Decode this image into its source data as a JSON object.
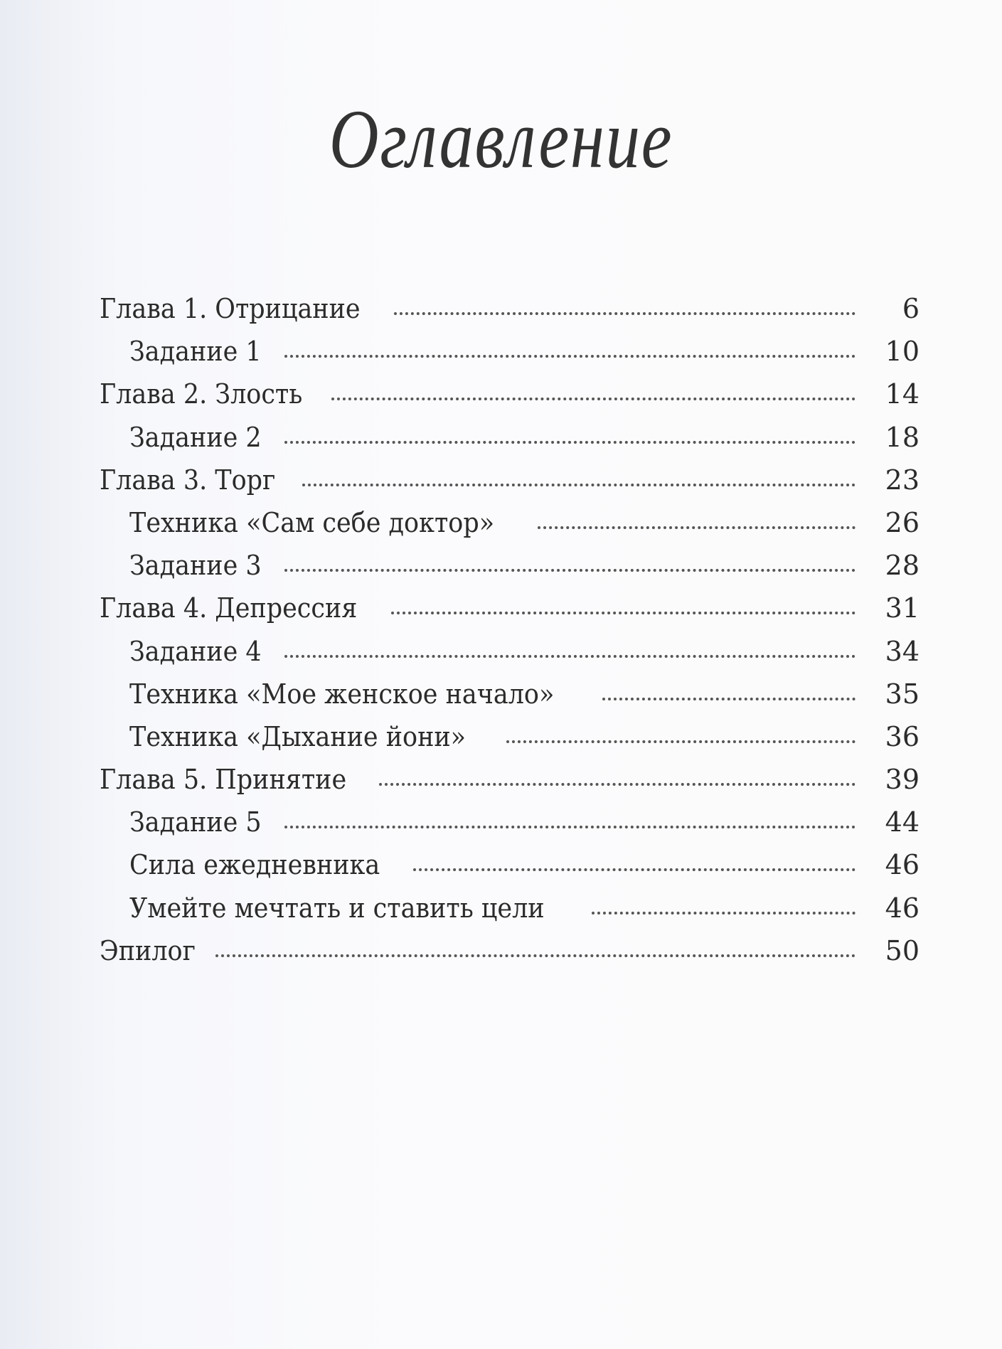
{
  "title": "Оглавление",
  "entries": [
    {
      "label": "Глава 1. Отрицание",
      "page": "6",
      "level": 1
    },
    {
      "label": "Задание 1",
      "page": "10",
      "level": 2
    },
    {
      "label": "Глава 2. Злость",
      "page": "14",
      "level": 1
    },
    {
      "label": "Задание 2",
      "page": "18",
      "level": 2
    },
    {
      "label": "Глава 3. Торг",
      "page": "23",
      "level": 1
    },
    {
      "label": "Техника «Сам себе доктор»",
      "page": "26",
      "level": 2
    },
    {
      "label": "Задание 3",
      "page": "28",
      "level": 2
    },
    {
      "label": "Глава 4. Депрессия",
      "page": "31",
      "level": 1
    },
    {
      "label": "Задание 4",
      "page": "34",
      "level": 2
    },
    {
      "label": "Техника «Мое женское начало»",
      "page": "35",
      "level": 2
    },
    {
      "label": "Техника «Дыхание йони»",
      "page": "36",
      "level": 2
    },
    {
      "label": "Глава 5. Принятие",
      "page": "39",
      "level": 1
    },
    {
      "label": "Задание 5",
      "page": "44",
      "level": 2
    },
    {
      "label": "Сила ежедневника",
      "page": "46",
      "level": 2
    },
    {
      "label": "Умейте мечтать и ставить цели",
      "page": "46",
      "level": 2
    },
    {
      "label": "Эпилог",
      "page": "50",
      "level": 1
    }
  ]
}
